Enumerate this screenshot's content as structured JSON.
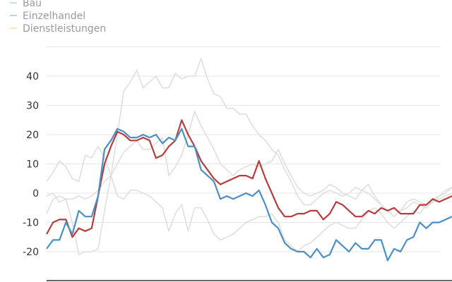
{
  "chart_data": {
    "type": "line",
    "ylim": [
      -25,
      50
    ],
    "y_ticks": [
      40,
      30,
      20,
      10,
      0,
      -10,
      -20
    ],
    "grid": true,
    "legend_position": "top-left",
    "legend": [
      {
        "name": "Bau",
        "color": "#c8e6c9"
      },
      {
        "name": "Einzelhandel",
        "color": "#b3dccf"
      },
      {
        "name": "Dienstleistungen",
        "color": "#f1efb5"
      }
    ],
    "series": [
      {
        "name": "Bau",
        "color": "#dddddd",
        "values": [
          -7,
          -2,
          -1,
          -2,
          -10,
          -21,
          -20,
          -20,
          -19,
          -6,
          6,
          20,
          35,
          38,
          42,
          36,
          38,
          40,
          36,
          36,
          41,
          39,
          40,
          40,
          46,
          39,
          34,
          33,
          29,
          29,
          27,
          27,
          23,
          20,
          18,
          15,
          13,
          8,
          4,
          -1,
          -4,
          -4,
          -2,
          0,
          1,
          0,
          -1,
          0,
          2,
          1,
          0,
          -2,
          -4,
          -6,
          -8,
          -6,
          -3,
          -2,
          -3,
          -4,
          -2,
          -1,
          1,
          2
        ]
      },
      {
        "name": "Einzelhandel",
        "color": "#dddddd",
        "values": [
          4,
          7,
          11,
          9,
          5,
          4,
          13,
          12,
          16,
          12,
          6,
          -1,
          -2,
          1,
          1,
          0,
          -1,
          -3,
          -5,
          -13,
          -7,
          -4,
          -13,
          -5,
          -5,
          -9,
          -14,
          -16,
          -15,
          -14,
          -12,
          -10,
          -9,
          -8,
          -8,
          -7,
          -10,
          -16,
          -18,
          -20,
          -18,
          -17,
          -15,
          -13,
          -11,
          -10,
          -11,
          -12,
          -12,
          -9,
          -6,
          -5,
          -7,
          -10,
          -12,
          -10,
          -8,
          -6,
          -7,
          -4,
          -3,
          -1,
          0,
          2
        ]
      },
      {
        "name": "Dienstleistungen",
        "color": "#dddddd",
        "values": [
          -1,
          0,
          -3,
          -2,
          -2,
          -1,
          -2,
          -1,
          1,
          4,
          6,
          10,
          14,
          16,
          18,
          15,
          15,
          17,
          19,
          6,
          9,
          13,
          20,
          28,
          23,
          19,
          15,
          10,
          8,
          6,
          8,
          9,
          10,
          9,
          10,
          11,
          15,
          10,
          6,
          2,
          0,
          -1,
          0,
          1,
          3,
          2,
          0,
          -1,
          -2,
          1,
          3,
          -1,
          -4,
          -6,
          -8,
          -6,
          -5,
          -3,
          -4,
          -5,
          -3,
          -2,
          -1,
          0
        ]
      },
      {
        "name": "",
        "color": "#b83c3c",
        "values": [
          -14,
          -10,
          -9,
          -9,
          -15,
          -12,
          -13,
          -12,
          -1,
          10,
          16,
          21,
          20,
          18,
          18,
          19,
          18,
          12,
          13,
          16,
          18,
          25,
          20,
          16,
          11,
          8,
          5,
          3,
          4,
          5,
          6,
          6,
          5,
          11,
          5,
          0,
          -5,
          -8,
          -8,
          -7,
          -7,
          -6,
          -6,
          -9,
          -7,
          -3,
          -4,
          -6,
          -8,
          -8,
          -6,
          -7,
          -5,
          -6,
          -5,
          -7,
          -7,
          -7,
          -4,
          -4,
          -2,
          -3,
          -2,
          -1
        ]
      },
      {
        "name": "",
        "color": "#4a90c4",
        "values": [
          -19,
          -16,
          -16,
          -10,
          -14,
          -6,
          -8,
          -8,
          -1,
          15,
          18,
          22,
          21,
          19,
          19,
          20,
          19,
          20,
          17,
          19,
          18,
          22,
          16,
          16,
          8,
          6,
          4,
          -2,
          -1,
          -2,
          -1,
          0,
          -1,
          1,
          -4,
          -10,
          -12,
          -17,
          -19,
          -20,
          -20,
          -22,
          -19,
          -22,
          -21,
          -16,
          -18,
          -20,
          -17,
          -19,
          -19,
          -16,
          -16,
          -23,
          -19,
          -20,
          -16,
          -15,
          -10,
          -12,
          -10,
          -10,
          -9,
          -8
        ]
      }
    ]
  }
}
